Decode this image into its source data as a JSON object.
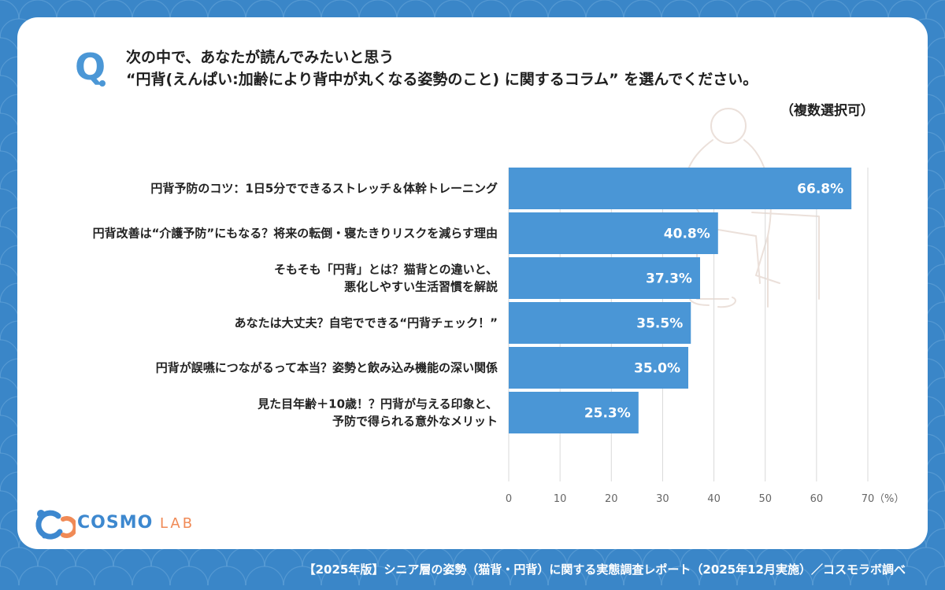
{
  "question": {
    "mark": "Q",
    "line1": "次の中で、あなたが読んでみたいと思う",
    "line2": "“円背(えんぱい:加齢により背中が丸くなる姿勢のこと) に関するコラム” を選んでください。",
    "note": "（複数選択可）"
  },
  "chart_data": {
    "type": "bar",
    "orientation": "horizontal",
    "categories": [
      [
        "円背予防のコツ：1日5分でできるストレッチ＆体幹トレーニング"
      ],
      [
        "円背改善は“介護予防”にもなる？将来の転倒・寝たきりリスクを減らす理由"
      ],
      [
        "そもそも「円背」とは？猫背との違いと、",
        "悪化しやすい生活習慣を解説"
      ],
      [
        "あなたは大丈夫？自宅でできる“円背チェック！”"
      ],
      [
        "円背が誤嚥につながるって本当？姿勢と飲み込み機能の深い関係"
      ],
      [
        "見た目年齢＋10歳！？円背が与える印象と、",
        "予防で得られる意外なメリット"
      ]
    ],
    "values": [
      66.8,
      40.8,
      37.3,
      35.5,
      35.0,
      25.3
    ],
    "value_labels": [
      "66.8%",
      "40.8%",
      "37.3%",
      "35.5%",
      "35.0%",
      "25.3%"
    ],
    "xlim": [
      0,
      70
    ],
    "xticks": [
      0,
      10,
      20,
      30,
      40,
      50,
      60,
      70
    ],
    "unit_label": "（%）",
    "bar_color": "#4a96d6",
    "grid": true
  },
  "logo": {
    "name": "COSMO",
    "suffix": "LAB",
    "icon": "cosmo-lab-logo-icon"
  },
  "footer": "【2025年版】シニア層の姿勢（猫背・円背）に関する実態調査レポート（2025年12月実施）／コスモラボ調べ",
  "colors": {
    "background": "#3a86c8",
    "accent": "#4a96d6",
    "logo_orange": "#f08a56"
  }
}
